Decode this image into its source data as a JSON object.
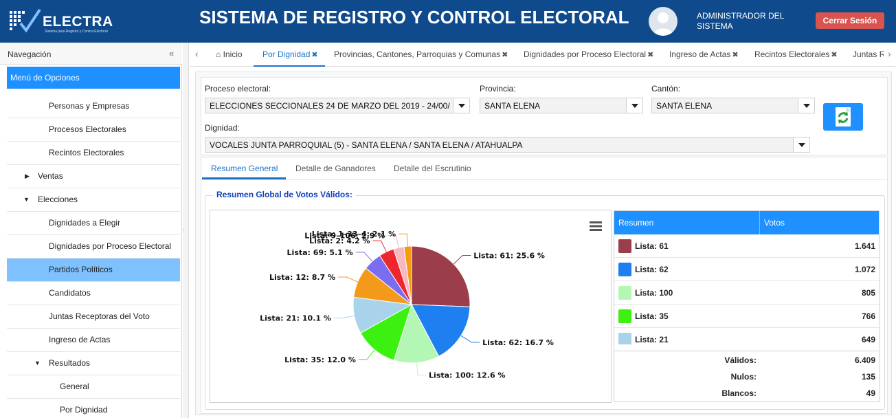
{
  "header": {
    "logo_text": "ELECTRA",
    "logo_subtitle": "Sistema para Registro y Control Electoral",
    "title": "SISTEMA DE REGISTRO Y CONTROL ELECTORAL",
    "user": "ADMINISTRADOR DEL SISTEMA",
    "logout_label": "Cerrar Sesión"
  },
  "sidebar": {
    "title": "Navegación",
    "collapse": "«",
    "menu_title": "Menú de Opciones",
    "items": [
      {
        "label": "Personas y Empresas"
      },
      {
        "label": "Procesos Electorales"
      },
      {
        "label": "Recintos Electorales"
      },
      {
        "label": "Ventas"
      },
      {
        "label": "Elecciones"
      },
      {
        "label": "Dignidades a Elegir"
      },
      {
        "label": "Dignidades por Proceso Electoral"
      },
      {
        "label": "Partidos Políticos"
      },
      {
        "label": "Candidatos"
      },
      {
        "label": "Juntas Receptoras del Voto"
      },
      {
        "label": "Ingreso de Actas"
      },
      {
        "label": "Resultados"
      },
      {
        "label": "General"
      },
      {
        "label": "Por Dignidad"
      }
    ]
  },
  "tabs": [
    {
      "label": "Inicio"
    },
    {
      "label": "Por Dignidad"
    },
    {
      "label": "Provincias, Cantones, Parroquias y Comunas"
    },
    {
      "label": "Dignidades por Proceso Electoral"
    },
    {
      "label": "Ingreso de Actas"
    },
    {
      "label": "Recintos Electorales"
    },
    {
      "label": "Juntas R"
    }
  ],
  "filters": {
    "proceso_label": "Proceso electoral:",
    "proceso_value": "ELECCIONES SECCIONALES 24 DE MARZO DEL 2019 - 24/00/",
    "provincia_label": "Provincia:",
    "provincia_value": "SANTA ELENA",
    "canton_label": "Cantón:",
    "canton_value": "SANTA ELENA",
    "dignidad_label": "Dignidad:",
    "dignidad_value": "VOCALES JUNTA PARROQUIAL (5) - SANTA ELENA / SANTA ELENA / ATAHUALPA"
  },
  "subtabs": [
    "Resumen General",
    "Detalle de Ganadores",
    "Detalle del Escrutinio"
  ],
  "summary": {
    "fieldset_title": "Resumen Global de Votos Válidos:",
    "col_resumen": "Resumen",
    "col_votos": "Votos",
    "rows": [
      {
        "label": "Lista: 61",
        "votes": "1.641",
        "color": "#9b3d4a"
      },
      {
        "label": "Lista: 62",
        "votes": "1.072",
        "color": "#1e7ff0"
      },
      {
        "label": "Lista: 100",
        "votes": "805",
        "color": "#b4f7b4"
      },
      {
        "label": "Lista: 35",
        "votes": "766",
        "color": "#3cf010"
      },
      {
        "label": "Lista: 21",
        "votes": "649",
        "color": "#a9d3ea"
      }
    ],
    "validos_label": "Válidos:",
    "validos": "6.409",
    "nulos_label": "Nulos:",
    "nulos": "135",
    "blancos_label": "Blancos:",
    "blancos": "49"
  },
  "chart_data": {
    "type": "pie",
    "title": "",
    "series": [
      {
        "values": [
          {
            "label": "Lista: 61",
            "value": 25.6,
            "color": "#9b3d4a"
          },
          {
            "label": "Lista: 62",
            "value": 16.7,
            "color": "#1e7ff0"
          },
          {
            "label": "Lista: 100",
            "value": 12.6,
            "color": "#b4f7b4"
          },
          {
            "label": "Lista: 35",
            "value": 12.0,
            "color": "#3cf010"
          },
          {
            "label": "Lista: 21",
            "value": 10.1,
            "color": "#a9d3ea"
          },
          {
            "label": "Lista: 12",
            "value": 8.7,
            "color": "#f49a1a"
          },
          {
            "label": "Lista: 69",
            "value": 5.1,
            "color": "#7b6cf0"
          },
          {
            "label": "Lista: 2",
            "value": 4.2,
            "color": "#f0262f"
          },
          {
            "label": "Lista: 9–106",
            "value": 2.9,
            "color": "#f7b8bf"
          },
          {
            "label": "Lista: 1–33–4",
            "value": 2.1,
            "color": "#f39c12"
          }
        ]
      }
    ],
    "data_labels": [
      "Lista: 61: 25.6 %",
      "Lista: 62: 16.7 %",
      "Lista: 100: 12.6 %",
      "Lista: 35: 12.0 %",
      "Lista: 21: 10.1 %",
      "Lista: 12: 8.7 %",
      "Lista: 69: 5.1 %",
      "Lista: 2: 4.2 %",
      "Lista: 9–106: 2.9 %",
      "Lista: 1–33–4: 2.1 %"
    ]
  }
}
